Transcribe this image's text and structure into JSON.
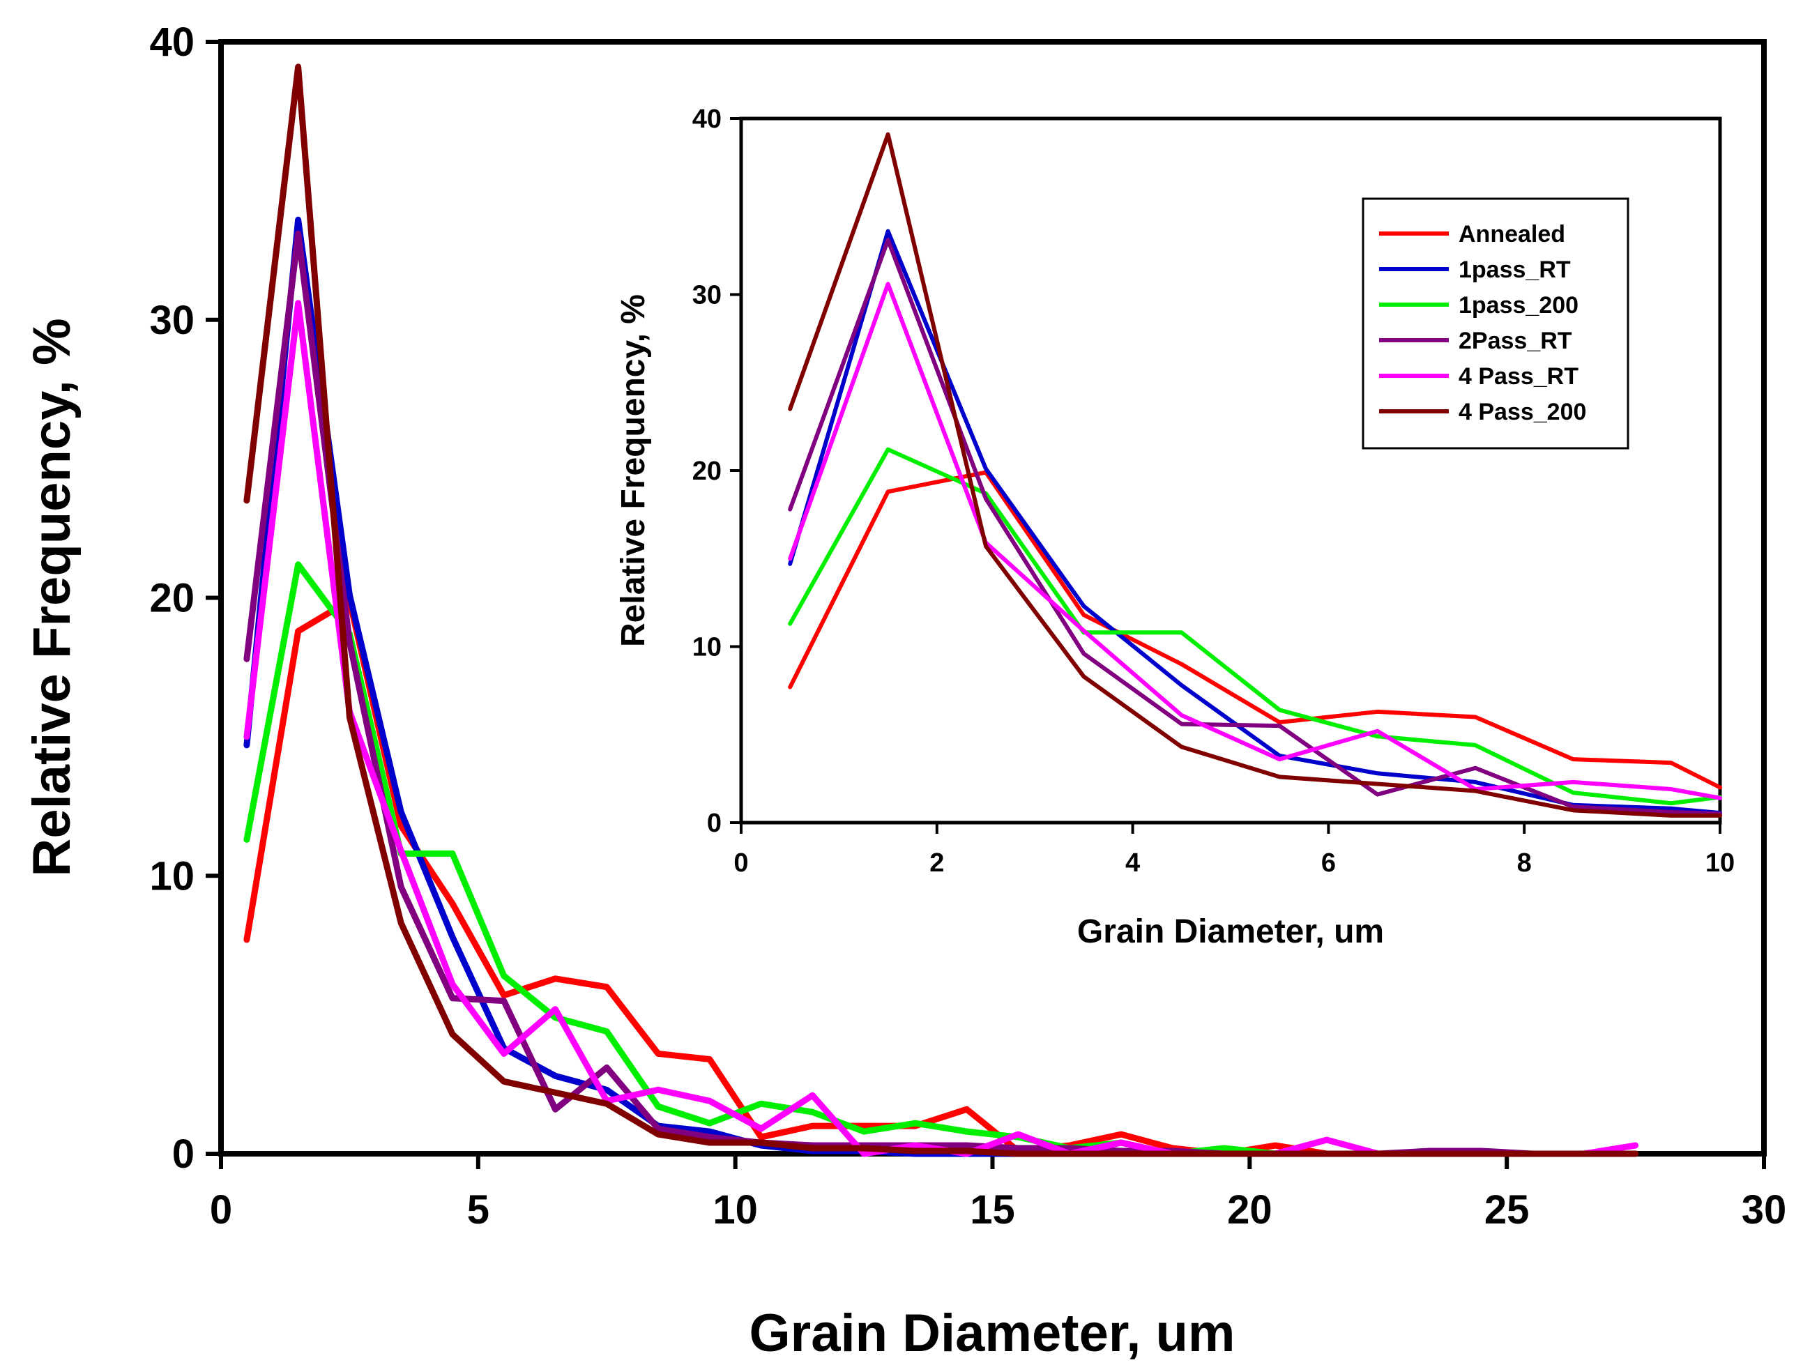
{
  "chart_data": [
    {
      "type": "line",
      "xlabel": "Grain Diameter, um",
      "ylabel": "Relative Frequency, %",
      "xlim": [
        0,
        30
      ],
      "ylim": [
        0,
        40
      ],
      "xticks": [
        "0",
        "5",
        "10",
        "15",
        "20",
        "25",
        "30"
      ],
      "yticks": [
        "0",
        "10",
        "20",
        "30",
        "40"
      ],
      "x": [
        0.5,
        1.5,
        2.5,
        3.5,
        4.5,
        5.5,
        6.5,
        7.5,
        8.5,
        9.5,
        10.5,
        11.5,
        12.5,
        13.5,
        14.5,
        15.5,
        16.5,
        17.5,
        18.5,
        19.5,
        20.5,
        21.5,
        22.5,
        23.5,
        24.5,
        25.5,
        26.5,
        27.5
      ],
      "series": [
        {
          "name": "Annealed",
          "color": "#ff0000",
          "values": [
            7.7,
            18.8,
            19.9,
            11.8,
            9.0,
            5.7,
            6.3,
            6.0,
            3.6,
            3.4,
            0.6,
            1.0,
            1.0,
            1.0,
            1.6,
            0.1,
            0.3,
            0.7,
            0.2,
            0.0,
            0.3,
            0.0,
            0.0,
            0.0,
            0.0,
            0.0,
            0.0,
            0.0
          ]
        },
        {
          "name": "1pass_RT",
          "color": "#0000cc",
          "values": [
            14.7,
            33.6,
            20.1,
            12.3,
            7.8,
            3.8,
            2.8,
            2.3,
            1.0,
            0.8,
            0.3,
            0.1,
            0.1,
            0.0,
            0.0,
            0.0,
            0.0,
            0.0,
            0.0,
            0.0,
            0.0,
            0.0,
            0.0,
            0.0,
            0.0,
            0.0,
            0.0,
            0.0
          ]
        },
        {
          "name": "1pass_200",
          "color": "#00ee00",
          "values": [
            11.3,
            21.2,
            18.7,
            10.8,
            10.8,
            6.4,
            4.9,
            4.4,
            1.7,
            1.1,
            1.8,
            1.5,
            0.8,
            1.1,
            0.8,
            0.6,
            0.2,
            0.4,
            0.0,
            0.2,
            0.0,
            0.0,
            0.0,
            0.0,
            0.0,
            0.0,
            0.0,
            0.0
          ]
        },
        {
          "name": "2Pass_RT",
          "color": "#800080",
          "values": [
            17.8,
            33.1,
            18.4,
            9.6,
            5.6,
            5.5,
            1.6,
            3.1,
            0.9,
            0.6,
            0.4,
            0.3,
            0.3,
            0.3,
            0.3,
            0.2,
            0.2,
            0.1,
            0.1,
            0.0,
            0.0,
            0.0,
            0.0,
            0.1,
            0.1,
            0.0,
            0.0,
            0.0
          ]
        },
        {
          "name": "4 Pass_RT",
          "color": "#ff00ff",
          "values": [
            15.0,
            30.6,
            15.9,
            10.9,
            6.1,
            3.6,
            5.2,
            1.9,
            2.3,
            1.9,
            0.9,
            2.1,
            0.0,
            0.3,
            0.0,
            0.7,
            0.0,
            0.4,
            0.0,
            0.0,
            0.0,
            0.5,
            0.0,
            0.0,
            0.0,
            0.0,
            0.0,
            0.3
          ]
        },
        {
          "name": "4 Pass_200",
          "color": "#800000",
          "values": [
            23.5,
            39.1,
            15.7,
            8.3,
            4.3,
            2.6,
            2.2,
            1.8,
            0.7,
            0.4,
            0.4,
            0.2,
            0.2,
            0.1,
            0.1,
            0.0,
            0.0,
            0.0,
            0.0,
            0.0,
            0.0,
            0.0,
            0.0,
            0.0,
            0.0,
            0.0,
            0.0,
            0.0
          ]
        }
      ]
    },
    {
      "type": "line",
      "xlabel": "Grain Diameter, um",
      "ylabel": "Relative Frequency, %",
      "xlim": [
        0,
        10
      ],
      "ylim": [
        0,
        40
      ],
      "xticks": [
        "0",
        "2",
        "4",
        "6",
        "8",
        "10"
      ],
      "yticks": [
        "0",
        "10",
        "20",
        "30",
        "40"
      ],
      "legend": "top-right",
      "note": "inset: same series as main chart, zoomed to 0-10 um"
    }
  ]
}
